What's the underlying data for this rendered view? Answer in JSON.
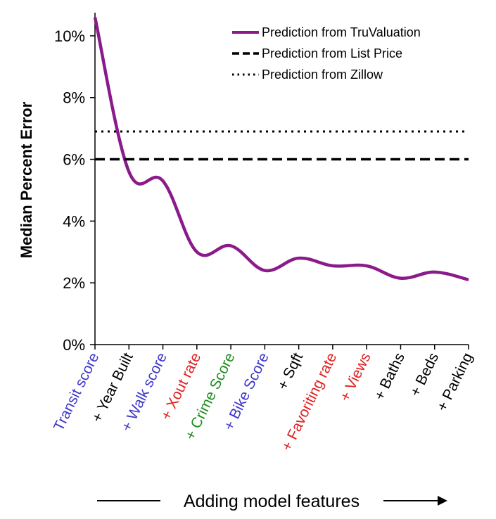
{
  "chart_data": {
    "type": "line",
    "xlabel": "Adding model features",
    "ylabel": "Median Percent Error",
    "ylim": [
      0,
      10.75
    ],
    "yticks": [
      0,
      2,
      4,
      6,
      8,
      10
    ],
    "ytick_suffix": "%",
    "categories": [
      {
        "label": "Transit score",
        "color": "#3f37c9"
      },
      {
        "label": "+ Year Built",
        "color": "#000000"
      },
      {
        "label": "+ Walk score",
        "color": "#3f37c9"
      },
      {
        "label": "+ Xout rate",
        "color": "#e02020"
      },
      {
        "label": "+ Crime Score",
        "color": "#1e8c1e"
      },
      {
        "label": "+ Bike Score",
        "color": "#3f37c9"
      },
      {
        "label": "+ Sqft",
        "color": "#000000"
      },
      {
        "label": "+ Favoriting rate",
        "color": "#e02020"
      },
      {
        "label": "+ Views",
        "color": "#e02020"
      },
      {
        "label": "+ Baths",
        "color": "#000000"
      },
      {
        "label": "+ Beds",
        "color": "#000000"
      },
      {
        "label": "+ Parking",
        "color": "#000000"
      }
    ],
    "series": [
      {
        "name": "Prediction from TruValuation",
        "style": "solid",
        "color": "#8b1a8b",
        "values": [
          10.6,
          5.6,
          5.3,
          3.0,
          3.2,
          2.4,
          2.8,
          2.55,
          2.55,
          2.15,
          2.35,
          2.1
        ]
      },
      {
        "name": "Prediction from List Price",
        "style": "dashed",
        "color": "#000000",
        "constant": 6.0
      },
      {
        "name": "Prediction from Zillow",
        "style": "dotted",
        "color": "#000000",
        "constant": 6.9
      }
    ],
    "legend_position": "top-right",
    "grid": false
  }
}
